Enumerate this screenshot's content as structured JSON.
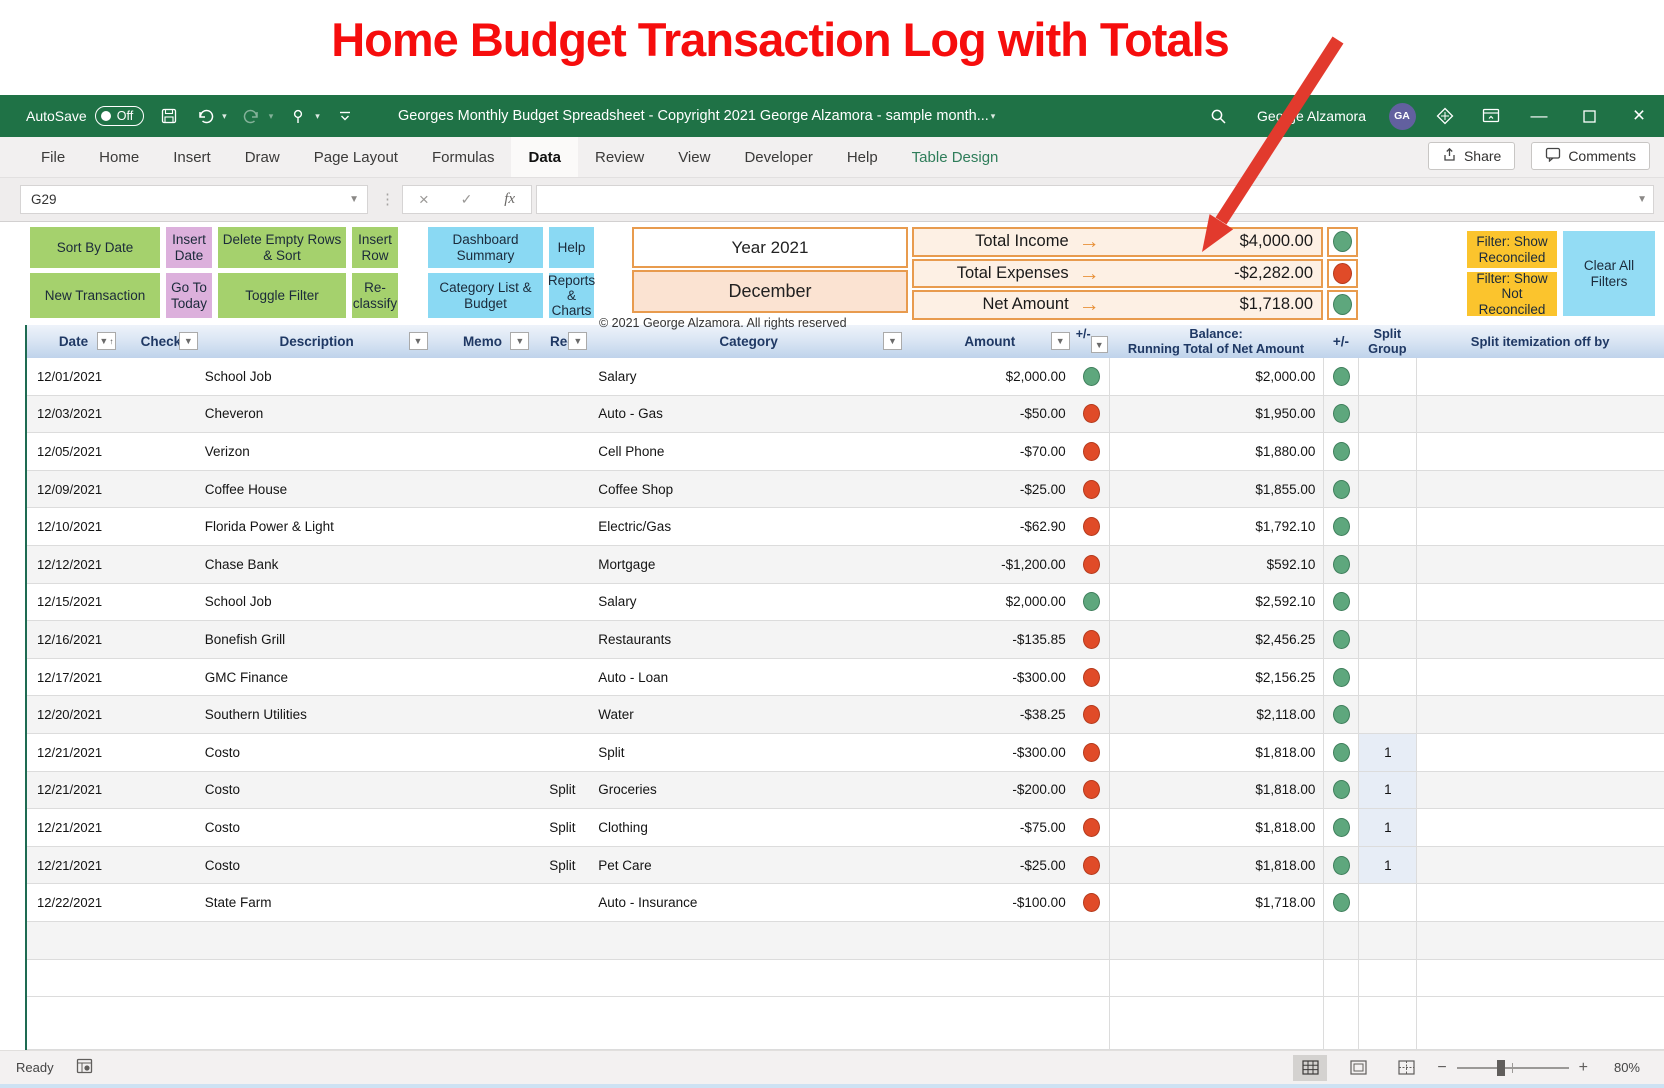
{
  "heading": "Home Budget Transaction Log with Totals",
  "titlebar": {
    "autosave_label": "AutoSave",
    "autosave_state": "Off",
    "doc_title": "Georges Monthly Budget Spreadsheet - Copyright 2021 George Alzamora - sample month...",
    "user_name": "George Alzamora",
    "user_initials": "GA"
  },
  "ribbon": {
    "tabs": [
      "File",
      "Home",
      "Insert",
      "Draw",
      "Page Layout",
      "Formulas",
      "Data",
      "Review",
      "View",
      "Developer",
      "Help",
      "Table Design"
    ],
    "active_tab": "Data",
    "contextual_tab": "Table Design",
    "share_label": "Share",
    "comments_label": "Comments"
  },
  "formula_bar": {
    "name_box": "G29",
    "formula_value": ""
  },
  "macro_buttons": {
    "row1": [
      {
        "label": "Sort By Date",
        "color": "green"
      },
      {
        "label": "Insert Date",
        "color": "pink"
      },
      {
        "label": "Delete Empty Rows & Sort",
        "color": "green"
      },
      {
        "label": "Insert Row",
        "color": "green"
      },
      {
        "label": "Dashboard Summary",
        "color": "blue"
      },
      {
        "label": "Help",
        "color": "blue"
      }
    ],
    "row2": [
      {
        "label": "New Transaction",
        "color": "green"
      },
      {
        "label": "Go To Today",
        "color": "pink"
      },
      {
        "label": "Toggle Filter",
        "color": "green"
      },
      {
        "label": "Re-classify",
        "color": "green"
      },
      {
        "label": "Category List & Budget",
        "color": "blue"
      },
      {
        "label": "Reports & Charts",
        "color": "blue"
      }
    ]
  },
  "summary": {
    "year_label": "Year 2021",
    "month_label": "December",
    "copyright": "© 2021 George Alzamora. All rights reserved",
    "totals": [
      {
        "label": "Total Income",
        "value": "$4,000.00",
        "status": "green"
      },
      {
        "label": "Total Expenses",
        "value": "-$2,282.00",
        "status": "red"
      },
      {
        "label": "Net Amount",
        "value": "$1,718.00",
        "status": "green"
      }
    ]
  },
  "filter_buttons": {
    "show_reconciled": "Filter: Show Reconciled",
    "show_not_reconciled": "Filter: Show Not Reconciled",
    "clear_all": "Clear All Filters"
  },
  "table": {
    "columns": {
      "date": "Date",
      "check": "Check",
      "description": "Description",
      "memo": "Memo",
      "rec": "Rec",
      "category": "Category",
      "amount": "Amount",
      "plus_minus": "+/-",
      "balance_line1": "Balance:",
      "balance_line2": "Running Total of Net Amount",
      "plus_minus_2": "+/-",
      "split_group_line1": "Split",
      "split_group_line2": "Group",
      "split_itemization": "Split itemization off by"
    },
    "rows": [
      {
        "date": "12/01/2021",
        "check": "",
        "description": "School Job",
        "memo": "",
        "rec": "",
        "category": "Salary",
        "amount": "$2,000.00",
        "amount_status": "green",
        "balance": "$2,000.00",
        "balance_status": "green",
        "split_group": "",
        "split_itemization": ""
      },
      {
        "date": "12/03/2021",
        "check": "",
        "description": "Cheveron",
        "memo": "",
        "rec": "",
        "category": "Auto - Gas",
        "amount": "-$50.00",
        "amount_status": "red",
        "balance": "$1,950.00",
        "balance_status": "green",
        "split_group": "",
        "split_itemization": ""
      },
      {
        "date": "12/05/2021",
        "check": "",
        "description": "Verizon",
        "memo": "",
        "rec": "",
        "category": "Cell Phone",
        "amount": "-$70.00",
        "amount_status": "red",
        "balance": "$1,880.00",
        "balance_status": "green",
        "split_group": "",
        "split_itemization": ""
      },
      {
        "date": "12/09/2021",
        "check": "",
        "description": "Coffee House",
        "memo": "",
        "rec": "",
        "category": "Coffee Shop",
        "amount": "-$25.00",
        "amount_status": "red",
        "balance": "$1,855.00",
        "balance_status": "green",
        "split_group": "",
        "split_itemization": ""
      },
      {
        "date": "12/10/2021",
        "check": "",
        "description": "Florida Power & Light",
        "memo": "",
        "rec": "",
        "category": "Electric/Gas",
        "amount": "-$62.90",
        "amount_status": "red",
        "balance": "$1,792.10",
        "balance_status": "green",
        "split_group": "",
        "split_itemization": ""
      },
      {
        "date": "12/12/2021",
        "check": "",
        "description": "Chase Bank",
        "memo": "",
        "rec": "",
        "category": "Mortgage",
        "amount": "-$1,200.00",
        "amount_status": "red",
        "balance": "$592.10",
        "balance_status": "green",
        "split_group": "",
        "split_itemization": ""
      },
      {
        "date": "12/15/2021",
        "check": "",
        "description": "School Job",
        "memo": "",
        "rec": "",
        "category": "Salary",
        "amount": "$2,000.00",
        "amount_status": "green",
        "balance": "$2,592.10",
        "balance_status": "green",
        "split_group": "",
        "split_itemization": ""
      },
      {
        "date": "12/16/2021",
        "check": "",
        "description": "Bonefish Grill",
        "memo": "",
        "rec": "",
        "category": "Restaurants",
        "amount": "-$135.85",
        "amount_status": "red",
        "balance": "$2,456.25",
        "balance_status": "green",
        "split_group": "",
        "split_itemization": ""
      },
      {
        "date": "12/17/2021",
        "check": "",
        "description": "GMC Finance",
        "memo": "",
        "rec": "",
        "category": "Auto - Loan",
        "amount": "-$300.00",
        "amount_status": "red",
        "balance": "$2,156.25",
        "balance_status": "green",
        "split_group": "",
        "split_itemization": ""
      },
      {
        "date": "12/20/2021",
        "check": "",
        "description": "Southern Utilities",
        "memo": "",
        "rec": "",
        "category": "Water",
        "amount": "-$38.25",
        "amount_status": "red",
        "balance": "$2,118.00",
        "balance_status": "green",
        "split_group": "",
        "split_itemization": ""
      },
      {
        "date": "12/21/2021",
        "check": "",
        "description": "Costo",
        "memo": "",
        "rec": "",
        "category": "Split",
        "amount": "-$300.00",
        "amount_status": "red",
        "balance": "$1,818.00",
        "balance_status": "green",
        "split_group": "1",
        "split_itemization": ""
      },
      {
        "date": "12/21/2021",
        "check": "",
        "description": "Costo",
        "memo": "",
        "rec": "Split",
        "category": "Groceries",
        "amount": "-$200.00",
        "amount_status": "red",
        "balance": "$1,818.00",
        "balance_status": "green",
        "split_group": "1",
        "split_itemization": ""
      },
      {
        "date": "12/21/2021",
        "check": "",
        "description": "Costo",
        "memo": "",
        "rec": "Split",
        "category": "Clothing",
        "amount": "-$75.00",
        "amount_status": "red",
        "balance": "$1,818.00",
        "balance_status": "green",
        "split_group": "1",
        "split_itemization": ""
      },
      {
        "date": "12/21/2021",
        "check": "",
        "description": "Costo",
        "memo": "",
        "rec": "Split",
        "category": "Pet Care",
        "amount": "-$25.00",
        "amount_status": "red",
        "balance": "$1,818.00",
        "balance_status": "green",
        "split_group": "1",
        "split_itemization": ""
      },
      {
        "date": "12/22/2021",
        "check": "",
        "description": "State Farm",
        "memo": "",
        "rec": "",
        "category": "Auto - Insurance",
        "amount": "-$100.00",
        "amount_status": "red",
        "balance": "$1,718.00",
        "balance_status": "green",
        "split_group": "",
        "split_itemization": ""
      }
    ],
    "empty_row_count": 3
  },
  "status_bar": {
    "mode": "Ready",
    "zoom_level": "80%"
  }
}
